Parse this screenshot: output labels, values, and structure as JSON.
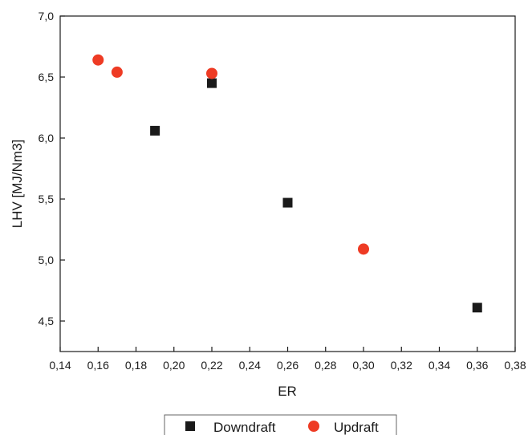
{
  "chart_data": {
    "type": "scatter",
    "title": "",
    "xlabel": "ER",
    "ylabel": "LHV [MJ/Nm3]",
    "xlim": [
      0.14,
      0.38
    ],
    "ylim": [
      4.25,
      7.0
    ],
    "x_ticks": [
      "0,14",
      "0,16",
      "0,18",
      "0,20",
      "0,22",
      "0,24",
      "0,26",
      "0,28",
      "0,30",
      "0,32",
      "0,34",
      "0,36",
      "0,38"
    ],
    "y_ticks": [
      "4,5",
      "5,0",
      "5,5",
      "6,0",
      "6,5",
      "7,0"
    ],
    "grid": false,
    "legend_position": "bottom",
    "series": [
      {
        "name": "Downdraft",
        "marker": "square",
        "color": "#1a1a1a",
        "points": [
          {
            "x": 0.19,
            "y": 6.06
          },
          {
            "x": 0.22,
            "y": 6.45
          },
          {
            "x": 0.26,
            "y": 5.47
          },
          {
            "x": 0.36,
            "y": 4.61
          }
        ]
      },
      {
        "name": "Updraft",
        "marker": "circle",
        "color": "#ee3b24",
        "points": [
          {
            "x": 0.16,
            "y": 6.64
          },
          {
            "x": 0.17,
            "y": 6.54
          },
          {
            "x": 0.22,
            "y": 6.53
          },
          {
            "x": 0.3,
            "y": 5.09
          }
        ]
      }
    ]
  }
}
